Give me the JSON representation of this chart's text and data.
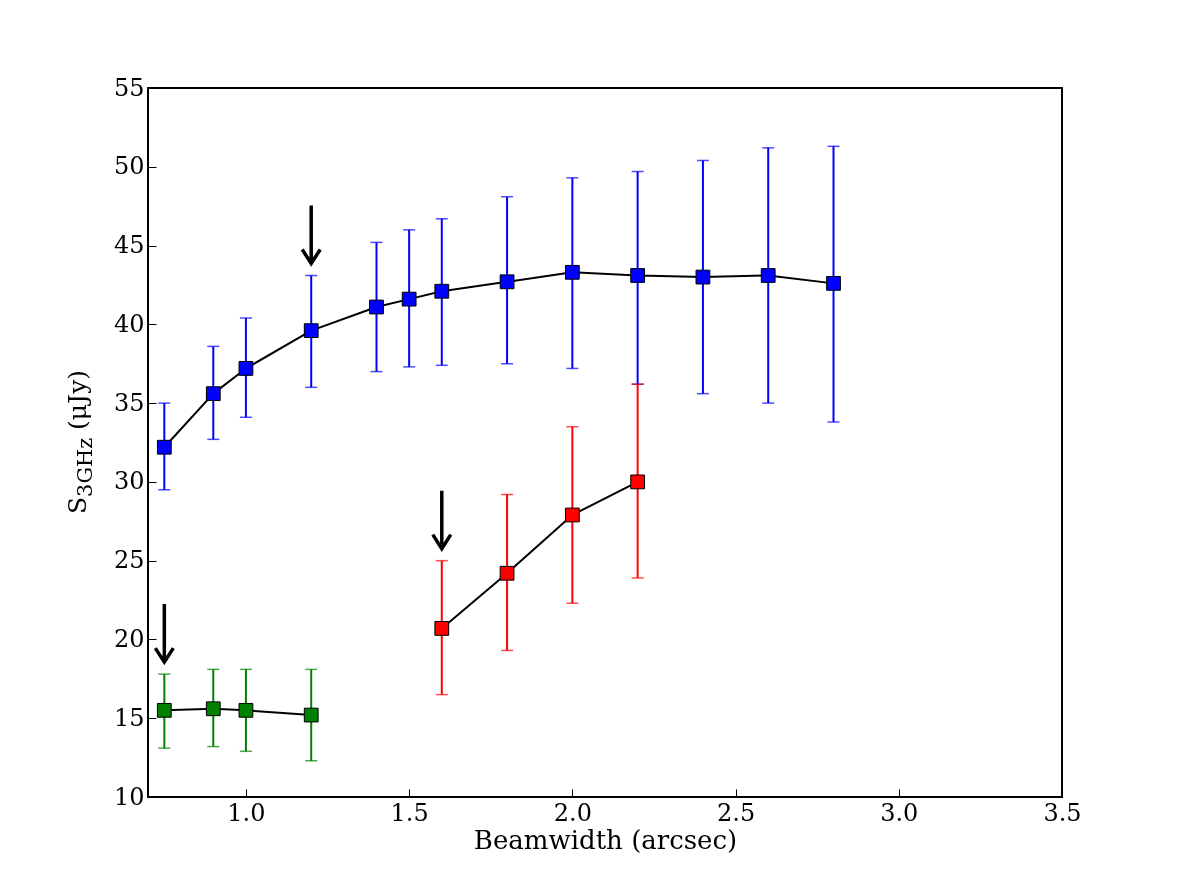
{
  "chart_data": {
    "type": "line",
    "xlabel": "Beamwidth (arcsec)",
    "ylabel": "S$_{3GHz}$ (μJy)",
    "xlim": [
      0.7,
      3.5
    ],
    "xticks": [
      {
        "value": 1,
        "label": "1.0"
      },
      {
        "value": 1.5,
        "label": "1.5"
      },
      {
        "value": 2,
        "label": "2.0"
      },
      {
        "value": 2.5,
        "label": "2.5"
      },
      {
        "value": 3,
        "label": "3.0"
      },
      {
        "value": 3.5,
        "label": "3.5"
      }
    ],
    "ylim": [
      10,
      55
    ],
    "yticks": [
      10,
      15,
      20,
      25,
      30,
      35,
      40,
      45,
      50,
      55
    ],
    "marker": "square",
    "line_style": "solid",
    "grid": false,
    "series": [
      {
        "color": "#0000ff",
        "x": [
          0.75,
          0.9,
          1.0,
          1.2,
          1.4,
          1.5,
          1.6,
          1.8,
          2.0,
          2.2,
          2.4,
          2.6,
          2.8
        ],
        "values": [
          32.2,
          35.6,
          37.2,
          39.6,
          41.1,
          41.6,
          42.1,
          42.7,
          43.3,
          43.1,
          43.0,
          43.1,
          42.6
        ],
        "errors": [
          [
            29.5,
            35.0
          ],
          [
            32.7,
            38.6
          ],
          [
            34.1,
            40.4
          ],
          [
            36.0,
            43.1
          ],
          [
            37.0,
            45.2
          ],
          [
            37.3,
            46.0
          ],
          [
            37.4,
            46.7
          ],
          [
            37.5,
            48.1
          ],
          [
            37.2,
            49.3
          ],
          [
            36.2,
            49.7
          ],
          [
            35.6,
            50.4
          ],
          [
            35.0,
            51.2
          ],
          [
            33.8,
            51.3
          ]
        ]
      },
      {
        "color": "#ff0000",
        "x": [
          1.6,
          1.8,
          2.0,
          2.2
        ],
        "values": [
          20.7,
          24.2,
          27.9,
          30.0
        ],
        "errors": [
          [
            16.5,
            25.0
          ],
          [
            19.3,
            29.2
          ],
          [
            22.3,
            33.5
          ],
          [
            23.9,
            36.2
          ]
        ]
      },
      {
        "color": "#008000",
        "x": [
          0.75,
          0.9,
          1.0,
          1.2
        ],
        "values": [
          15.5,
          15.6,
          15.5,
          15.2
        ],
        "errors": [
          [
            13.1,
            17.8
          ],
          [
            13.2,
            18.1
          ],
          [
            12.9,
            18.1
          ],
          [
            12.3,
            18.1
          ]
        ]
      }
    ]
  }
}
